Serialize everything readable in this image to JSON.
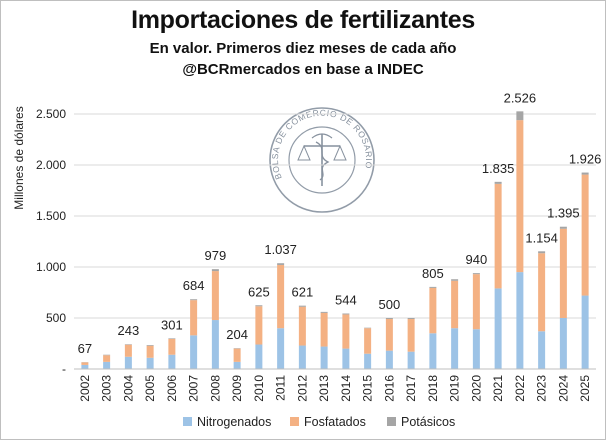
{
  "chart_data": {
    "type": "bar",
    "stacked": true,
    "title": "Importaciones de fertilizantes",
    "subtitle": "En valor. Primeros diez meses de cada año",
    "source": "@BCRmercados en base a INDEC",
    "ylabel": "Millones de dólares",
    "ylim": [
      0,
      2500
    ],
    "yticks": [
      {
        "value": 0,
        "label": "-"
      },
      {
        "value": 500,
        "label": "500"
      },
      {
        "value": 1000,
        "label": "1.000"
      },
      {
        "value": 1500,
        "label": "1.500"
      },
      {
        "value": 2000,
        "label": "2.000"
      },
      {
        "value": 2500,
        "label": "2.500"
      }
    ],
    "grid": true,
    "legend_position": "bottom",
    "categories": [
      "2002",
      "2003",
      "2004",
      "2005",
      "2006",
      "2007",
      "2008",
      "2009",
      "2010",
      "2011",
      "2012",
      "2013",
      "2014",
      "2015",
      "2016",
      "2017",
      "2018",
      "2019",
      "2020",
      "2021",
      "2022",
      "2023",
      "2024",
      "2025"
    ],
    "series": [
      {
        "name": "Nitrogenados",
        "color": "#9dc3e6",
        "values": [
          40,
          70,
          120,
          110,
          140,
          330,
          480,
          70,
          240,
          400,
          230,
          220,
          200,
          150,
          180,
          170,
          350,
          400,
          390,
          790,
          950,
          370,
          500,
          720
        ]
      },
      {
        "name": "Fosfatados",
        "color": "#f4b183",
        "values": [
          25,
          65,
          118,
          118,
          155,
          345,
          480,
          130,
          375,
          620,
          380,
          330,
          335,
          250,
          310,
          320,
          445,
          465,
          540,
          1025,
          1490,
          765,
          875,
          1186
        ]
      },
      {
        "name": "Potásicos",
        "color": "#a5a5a5",
        "values": [
          2,
          5,
          5,
          7,
          6,
          9,
          19,
          4,
          10,
          17,
          11,
          10,
          9,
          5,
          10,
          10,
          10,
          15,
          10,
          20,
          86,
          19,
          20,
          20
        ]
      }
    ],
    "data_labels": [
      {
        "category": "2002",
        "label": "67"
      },
      {
        "category": "2004",
        "label": "243"
      },
      {
        "category": "2006",
        "label": "301"
      },
      {
        "category": "2007",
        "label": "684"
      },
      {
        "category": "2008",
        "label": "979"
      },
      {
        "category": "2009",
        "label": "204"
      },
      {
        "category": "2010",
        "label": "625"
      },
      {
        "category": "2011",
        "label": "1.037"
      },
      {
        "category": "2012",
        "label": "621"
      },
      {
        "category": "2014",
        "label": "544"
      },
      {
        "category": "2016",
        "label": "500"
      },
      {
        "category": "2018",
        "label": "805"
      },
      {
        "category": "2020",
        "label": "940"
      },
      {
        "category": "2021",
        "label": "1.835"
      },
      {
        "category": "2022",
        "label": "2.526"
      },
      {
        "category": "2023",
        "label": "1.154"
      },
      {
        "category": "2024",
        "label": "1.395"
      },
      {
        "category": "2025",
        "label": "1.926"
      }
    ]
  },
  "logo": {
    "text": "BOLSA DE COMERCIO DE ROSARIO"
  }
}
